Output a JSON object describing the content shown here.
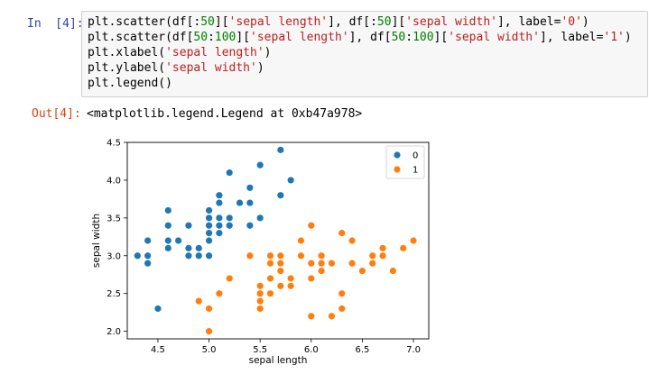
{
  "cell": {
    "in_prompt": "In  [4]:",
    "out_prompt": "Out[4]:",
    "code": [
      [
        {
          "t": "plt.scatter(df[:"
        },
        {
          "t": "50",
          "c": "n"
        },
        {
          "t": "]["
        },
        {
          "t": "'sepal length'",
          "c": "s"
        },
        {
          "t": "], df[:"
        },
        {
          "t": "50",
          "c": "n"
        },
        {
          "t": "]["
        },
        {
          "t": "'sepal width'",
          "c": "s"
        },
        {
          "t": "], label="
        },
        {
          "t": "'0'",
          "c": "s"
        },
        {
          "t": ")"
        }
      ],
      [
        {
          "t": "plt.scatter(df["
        },
        {
          "t": "50",
          "c": "n"
        },
        {
          "t": ":"
        },
        {
          "t": "100",
          "c": "n"
        },
        {
          "t": "]["
        },
        {
          "t": "'sepal length'",
          "c": "s"
        },
        {
          "t": "], df["
        },
        {
          "t": "50",
          "c": "n"
        },
        {
          "t": ":"
        },
        {
          "t": "100",
          "c": "n"
        },
        {
          "t": "]["
        },
        {
          "t": "'sepal width'",
          "c": "s"
        },
        {
          "t": "], label="
        },
        {
          "t": "'1'",
          "c": "s"
        },
        {
          "t": ")"
        }
      ],
      [
        {
          "t": "plt.xlabel("
        },
        {
          "t": "'sepal length'",
          "c": "s"
        },
        {
          "t": ")"
        }
      ],
      [
        {
          "t": "plt.ylabel("
        },
        {
          "t": "'sepal width'",
          "c": "s"
        },
        {
          "t": ")"
        }
      ],
      [
        {
          "t": "plt.legend()"
        }
      ]
    ],
    "output_text": "<matplotlib.legend.Legend at 0xb47a978>"
  },
  "colors": {
    "series0": "#1f77b4",
    "series1": "#ff7f0e"
  },
  "chart_data": {
    "type": "scatter",
    "title": "",
    "xlabel": "sepal length",
    "ylabel": "sepal width",
    "xlim": [
      4.2,
      7.15
    ],
    "ylim": [
      1.9,
      4.5
    ],
    "xticks": [
      "4.5",
      "5.0",
      "5.5",
      "6.0",
      "6.5",
      "7.0"
    ],
    "yticks": [
      "2.0",
      "2.5",
      "3.0",
      "3.5",
      "4.0",
      "4.5"
    ],
    "grid": false,
    "legend_position": "top-right",
    "series": [
      {
        "name": "0",
        "points": [
          [
            4.3,
            3.0
          ],
          [
            4.4,
            2.9
          ],
          [
            4.4,
            3.0
          ],
          [
            4.4,
            3.2
          ],
          [
            4.5,
            2.3
          ],
          [
            4.6,
            3.1
          ],
          [
            4.6,
            3.2
          ],
          [
            4.6,
            3.4
          ],
          [
            4.6,
            3.6
          ],
          [
            4.7,
            3.2
          ],
          [
            4.8,
            3.0
          ],
          [
            4.8,
            3.1
          ],
          [
            4.8,
            3.4
          ],
          [
            4.9,
            3.0
          ],
          [
            4.9,
            3.1
          ],
          [
            5.0,
            3.0
          ],
          [
            5.0,
            3.2
          ],
          [
            5.0,
            3.3
          ],
          [
            5.0,
            3.4
          ],
          [
            5.0,
            3.5
          ],
          [
            5.0,
            3.6
          ],
          [
            5.1,
            3.3
          ],
          [
            5.1,
            3.4
          ],
          [
            5.1,
            3.5
          ],
          [
            5.1,
            3.7
          ],
          [
            5.1,
            3.8
          ],
          [
            5.2,
            3.4
          ],
          [
            5.2,
            3.5
          ],
          [
            5.2,
            4.1
          ],
          [
            5.3,
            3.7
          ],
          [
            5.4,
            3.4
          ],
          [
            5.4,
            3.7
          ],
          [
            5.4,
            3.9
          ],
          [
            5.5,
            3.5
          ],
          [
            5.5,
            4.2
          ],
          [
            5.7,
            3.8
          ],
          [
            5.7,
            4.4
          ],
          [
            5.8,
            4.0
          ]
        ]
      },
      {
        "name": "1",
        "points": [
          [
            4.9,
            2.4
          ],
          [
            5.0,
            2.0
          ],
          [
            5.0,
            2.3
          ],
          [
            5.1,
            2.5
          ],
          [
            5.2,
            2.7
          ],
          [
            5.4,
            3.0
          ],
          [
            5.5,
            2.3
          ],
          [
            5.5,
            2.4
          ],
          [
            5.5,
            2.5
          ],
          [
            5.5,
            2.6
          ],
          [
            5.6,
            2.5
          ],
          [
            5.6,
            2.7
          ],
          [
            5.6,
            2.9
          ],
          [
            5.6,
            3.0
          ],
          [
            5.7,
            2.6
          ],
          [
            5.7,
            2.8
          ],
          [
            5.7,
            2.9
          ],
          [
            5.7,
            3.0
          ],
          [
            5.8,
            2.6
          ],
          [
            5.8,
            2.7
          ],
          [
            5.9,
            3.0
          ],
          [
            5.9,
            3.2
          ],
          [
            6.0,
            2.2
          ],
          [
            6.0,
            2.7
          ],
          [
            6.0,
            2.9
          ],
          [
            6.0,
            3.4
          ],
          [
            6.1,
            2.8
          ],
          [
            6.1,
            2.9
          ],
          [
            6.1,
            3.0
          ],
          [
            6.2,
            2.2
          ],
          [
            6.2,
            2.9
          ],
          [
            6.3,
            2.3
          ],
          [
            6.3,
            2.5
          ],
          [
            6.3,
            3.3
          ],
          [
            6.4,
            2.9
          ],
          [
            6.4,
            3.2
          ],
          [
            6.5,
            2.8
          ],
          [
            6.6,
            2.9
          ],
          [
            6.6,
            3.0
          ],
          [
            6.7,
            3.0
          ],
          [
            6.7,
            3.1
          ],
          [
            6.8,
            2.8
          ],
          [
            6.9,
            3.1
          ],
          [
            7.0,
            3.2
          ]
        ]
      }
    ]
  }
}
